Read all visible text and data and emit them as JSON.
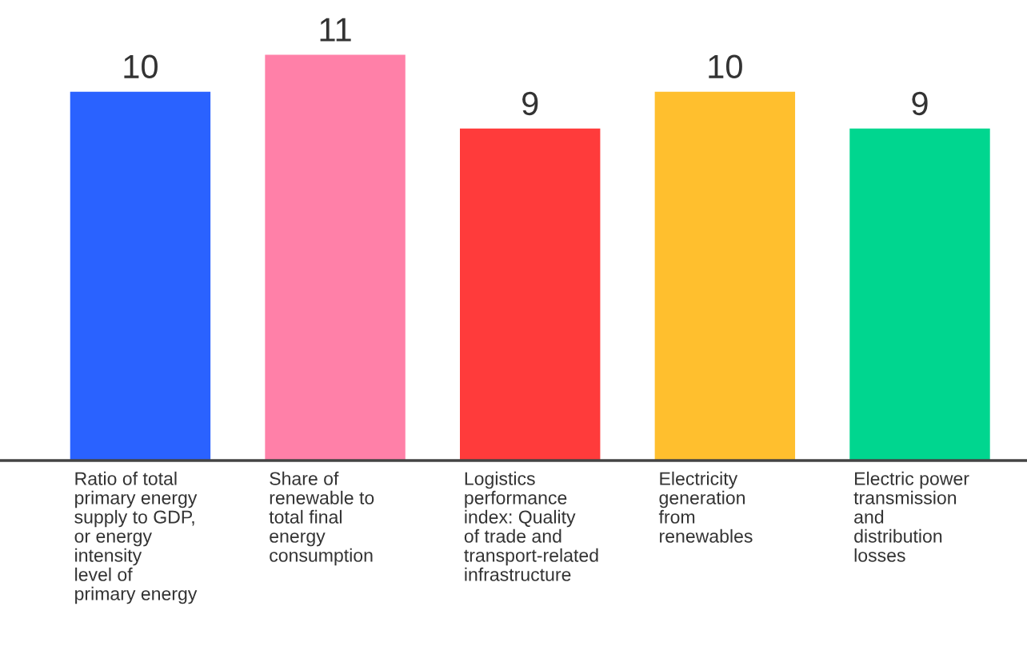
{
  "chart_data": {
    "type": "bar",
    "categories": [
      "Ratio of total primary energy supply to GDP, or energy intensity level of primary energy",
      "Share of renewable to total final energy consumption",
      "Logistics performance index: Quality of trade and transport-related infrastructure",
      "Electricity generation from renewables",
      "Electric power transmission and distribution losses"
    ],
    "values": [
      10,
      11,
      9,
      10,
      9
    ],
    "colors": [
      "#2a62ff",
      "#ff80a8",
      "#ff3b3b",
      "#ffbf2e",
      "#00d68f"
    ],
    "data_labels": true,
    "tick_labels": "x",
    "legend": false
  }
}
